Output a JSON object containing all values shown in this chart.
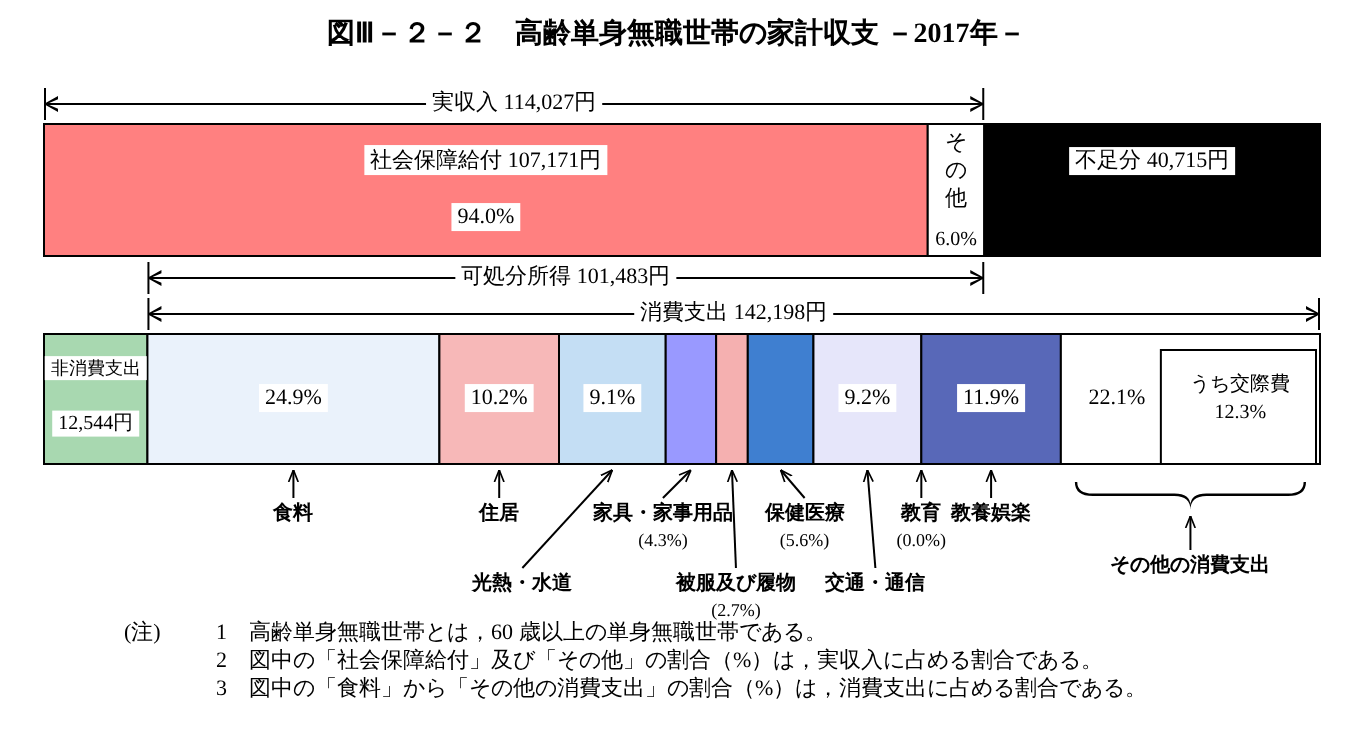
{
  "chart_data": {
    "type": "bar",
    "orientation": "horizontal",
    "stacked": true,
    "legend": "bottom",
    "title": "図Ⅲ－２－２　高齢単身無職世帯の家計収支 －2017年－",
    "categories": [
      null,
      null
    ],
    "series": [
      {
        "name": "社会保障給付",
        "color": "#ff8080",
        "values": [
          107171,
          null
        ],
        "value_labels": [
          "107,171円",
          null
        ]
      },
      {
        "name": "その他",
        "color": "#ffffff",
        "values": [
          6856,
          null
        ]
      },
      {
        "name": "不足分",
        "color": "#000000",
        "values": [
          40715,
          null
        ],
        "value_labels": [
          "40,715円",
          null
        ]
      },
      {
        "name": "非消費支出",
        "color": "#a8d8b0",
        "values": [
          null,
          12544
        ],
        "value_labels": [
          null,
          "12,544円"
        ]
      },
      {
        "name": "食料",
        "color": "#eaf2fb",
        "values": [
          null,
          35407
        ]
      },
      {
        "name": "住居",
        "color": "#f7b8b8",
        "values": [
          null,
          14504
        ]
      },
      {
        "name": "光熱・水道",
        "color": "#c4def4",
        "values": [
          null,
          12940
        ]
      },
      {
        "name": "家具・家事用品",
        "color": "#9999ff",
        "values": [
          null,
          6115
        ]
      },
      {
        "name": "被服及び履物",
        "color": "#f5b0b0",
        "values": [
          null,
          3839
        ]
      },
      {
        "name": "保健医療",
        "color": "#3f7fd0",
        "values": [
          null,
          7963
        ]
      },
      {
        "name": "交通・通信",
        "color": "#e6e6fa",
        "values": [
          null,
          13082
        ]
      },
      {
        "name": "教育",
        "color": "#000000",
        "values": [
          null,
          0
        ]
      },
      {
        "name": "教養娯楽",
        "color": "#5868b8",
        "values": [
          null,
          16922
        ]
      },
      {
        "name": "その他の消費支出",
        "color": "#ffffff",
        "values": [
          null,
          31426
        ]
      }
    ],
    "annotations": [
      "実収入 114,027円",
      "可処分所得 101,483円",
      "消費支出 142,198円",
      "うち交際費 12.3%",
      "94.0%",
      "6.0%",
      "24.9%",
      "10.2%",
      "9.1%",
      "(4.3%)",
      "(2.7%)",
      "(5.6%)",
      "9.2%",
      "(0.0%)",
      "11.9%",
      "22.1%",
      "(注)",
      "1　高齢単身無職世帯とは，60 歳以上の単身無職世帯である。",
      "2　図中の「社会保障給付」及び「その他」の割合（%）は，実収入に占める割合である。",
      "3　図中の「食料」から「その他の消費支出」の割合（%）は，消費支出に占める割合である。"
    ]
  }
}
